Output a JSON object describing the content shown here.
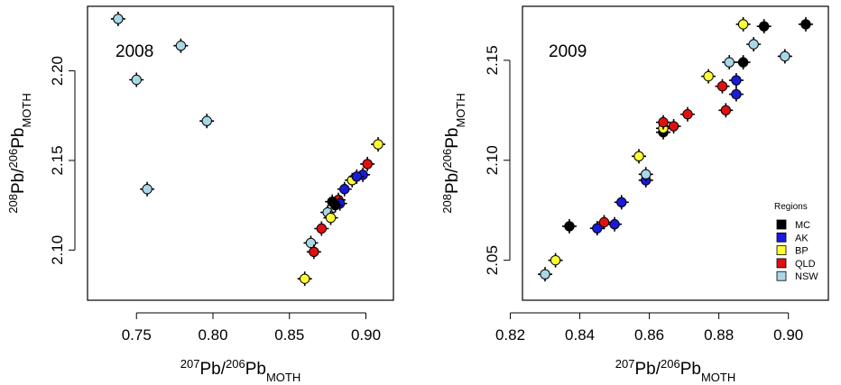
{
  "colors": {
    "MC": "#000000",
    "AK": "#1a1adb",
    "BP": "#ffff33",
    "QLD": "#e01010",
    "NSW": "#a8d8e8",
    "errorbar": "#000000"
  },
  "chart_data": [
    {
      "type": "scatter",
      "panel_label": "2008",
      "xlabel": {
        "sup": "207",
        "base": "Pb/",
        "sup2": "206",
        "base2": "Pb",
        "sub": "MOTH"
      },
      "ylabel": {
        "sup": "208",
        "base": "Pb/",
        "sup2": "206",
        "base2": "Pb",
        "sub": "MOTH"
      },
      "xlim": [
        0.718,
        0.918
      ],
      "ylim": [
        2.072,
        2.236
      ],
      "x_ticks": [
        0.75,
        0.8,
        0.85,
        0.9
      ],
      "x_tick_labels": [
        "0.75",
        "0.80",
        "0.85",
        "0.90"
      ],
      "y_ticks": [
        2.1,
        2.15,
        2.2
      ],
      "y_tick_labels": [
        "2.10",
        "2.15",
        "2.20"
      ],
      "series": [
        {
          "key": "NSW",
          "points": [
            [
              0.738,
              2.229
            ],
            [
              0.75,
              2.195
            ],
            [
              0.779,
              2.214
            ],
            [
              0.796,
              2.172
            ],
            [
              0.757,
              2.134
            ],
            [
              0.864,
              2.104
            ],
            [
              0.875,
              2.121
            ]
          ]
        },
        {
          "key": "BP",
          "points": [
            [
              0.908,
              2.159
            ],
            [
              0.891,
              2.139
            ],
            [
              0.86,
              2.084
            ],
            [
              0.877,
              2.118
            ]
          ]
        },
        {
          "key": "QLD",
          "points": [
            [
              0.901,
              2.148
            ],
            [
              0.866,
              2.099
            ],
            [
              0.871,
              2.112
            ],
            [
              0.882,
              2.128
            ]
          ]
        },
        {
          "key": "AK",
          "points": [
            [
              0.898,
              2.142
            ],
            [
              0.886,
              2.134
            ],
            [
              0.894,
              2.141
            ],
            [
              0.883,
              2.126
            ]
          ]
        },
        {
          "key": "MC",
          "points": [
            [
              0.88,
              2.125
            ],
            [
              0.878,
              2.127
            ]
          ]
        }
      ]
    },
    {
      "type": "scatter",
      "panel_label": "2009",
      "xlabel": {
        "sup": "207",
        "base": "Pb/",
        "sup2": "206",
        "base2": "Pb",
        "sub": "MOTH"
      },
      "ylabel": {
        "sup": "208",
        "base": "Pb/",
        "sup2": "206",
        "base2": "Pb",
        "sub": "MOTH"
      },
      "xlim": [
        0.8235,
        0.9115
      ],
      "ylim": [
        2.03,
        2.177
      ],
      "x_ticks": [
        0.82,
        0.84,
        0.86,
        0.88,
        0.9
      ],
      "x_tick_labels": [
        "0.82",
        "0.84",
        "0.86",
        "0.88",
        "0.90"
      ],
      "y_ticks": [
        2.05,
        2.1,
        2.15
      ],
      "y_tick_labels": [
        "2.05",
        "2.10",
        "2.15"
      ],
      "legend": {
        "title": "Regions",
        "placement": "bottom-right",
        "entries": [
          "MC",
          "AK",
          "BP",
          "QLD",
          "NSW"
        ]
      },
      "series": [
        {
          "key": "MC",
          "points": [
            [
              0.837,
              2.067
            ],
            [
              0.864,
              2.114
            ],
            [
              0.887,
              2.149
            ],
            [
              0.893,
              2.167
            ],
            [
              0.905,
              2.168
            ]
          ]
        },
        {
          "key": "AK",
          "points": [
            [
              0.845,
              2.066
            ],
            [
              0.85,
              2.068
            ],
            [
              0.852,
              2.079
            ],
            [
              0.859,
              2.09
            ],
            [
              0.885,
              2.14
            ],
            [
              0.885,
              2.133
            ]
          ]
        },
        {
          "key": "BP",
          "points": [
            [
              0.833,
              2.05
            ],
            [
              0.857,
              2.102
            ],
            [
              0.877,
              2.142
            ],
            [
              0.887,
              2.168
            ],
            [
              0.864,
              2.116
            ]
          ]
        },
        {
          "key": "QLD",
          "points": [
            [
              0.847,
              2.069
            ],
            [
              0.864,
              2.119
            ],
            [
              0.867,
              2.117
            ],
            [
              0.871,
              2.123
            ],
            [
              0.881,
              2.137
            ],
            [
              0.882,
              2.125
            ]
          ]
        },
        {
          "key": "NSW",
          "points": [
            [
              0.83,
              2.043
            ],
            [
              0.859,
              2.093
            ],
            [
              0.883,
              2.149
            ],
            [
              0.89,
              2.158
            ],
            [
              0.899,
              2.152
            ]
          ]
        }
      ]
    }
  ]
}
